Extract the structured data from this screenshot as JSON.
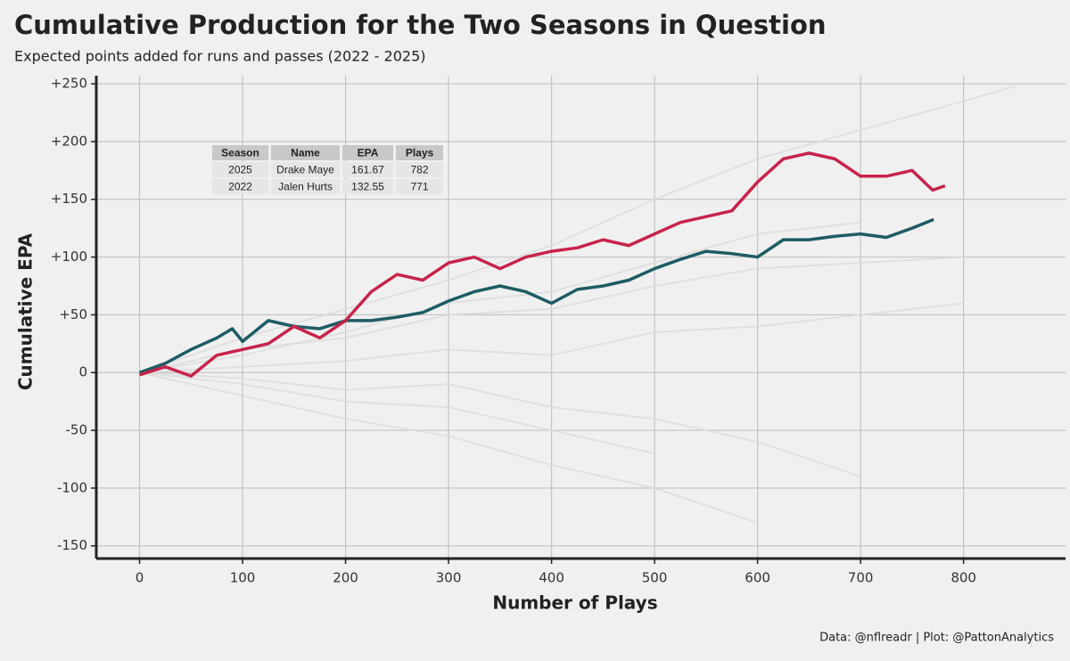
{
  "chart_data": {
    "type": "line",
    "title": "Cumulative Production for the Two Seasons in Question",
    "subtitle": "Expected points added for runs and passes (2022 - 2025)",
    "x_label": "Number of Plays",
    "y_label": "Cumulative EPA",
    "caption": "Data: @nflreadr | Plot: @PattonAnalytics",
    "xlim": [
      -42,
      899
    ],
    "ylim": [
      -161,
      257
    ],
    "xticks": [
      0,
      100,
      200,
      300,
      400,
      500,
      600,
      700,
      800
    ],
    "yticks": [
      {
        "value": 250,
        "label": "+250"
      },
      {
        "value": 200,
        "label": "+200"
      },
      {
        "value": 150,
        "label": "+150"
      },
      {
        "value": 100,
        "label": "+100"
      },
      {
        "value": 50,
        "label": "+50"
      },
      0,
      -50,
      -100,
      -150
    ],
    "grid": true,
    "table": {
      "columns": [
        "Season",
        "Name",
        "EPA",
        "Plays"
      ],
      "rows": [
        [
          2025,
          "Drake Maye",
          161.67,
          782
        ],
        [
          2022,
          "Jalen Hurts",
          132.55,
          771
        ]
      ]
    },
    "series": [
      {
        "color": "#dcdcdc",
        "x": [
          0,
          100,
          200,
          300,
          400,
          500,
          600,
          700,
          800,
          850
        ],
        "values": [
          0,
          30,
          55,
          80,
          110,
          150,
          185,
          210,
          235,
          248
        ]
      },
      {
        "color": "#dcdcdc",
        "x": [
          0,
          100,
          200,
          300,
          400,
          500,
          600,
          700
        ],
        "values": [
          0,
          15,
          35,
          60,
          70,
          95,
          120,
          130
        ]
      },
      {
        "color": "#dcdcdc",
        "x": [
          0,
          100,
          200,
          300,
          400,
          500,
          600,
          700,
          800
        ],
        "values": [
          0,
          5,
          10,
          20,
          15,
          35,
          40,
          50,
          60
        ]
      },
      {
        "color": "#dcdcdc",
        "x": [
          0,
          100,
          200,
          300,
          400,
          500
        ],
        "values": [
          0,
          -10,
          -25,
          -30,
          -50,
          -70
        ]
      },
      {
        "color": "#dcdcdc",
        "x": [
          0,
          100,
          200,
          300,
          400,
          500,
          600
        ],
        "values": [
          0,
          -20,
          -40,
          -55,
          -80,
          -100,
          -130
        ]
      },
      {
        "color": "#dcdcdc",
        "x": [
          0,
          100,
          200,
          300,
          400,
          500,
          600,
          700
        ],
        "values": [
          0,
          -5,
          -15,
          -10,
          -30,
          -40,
          -60,
          -90
        ]
      },
      {
        "color": "#dcdcdc",
        "x": [
          0,
          100,
          200,
          300,
          400,
          500,
          600,
          700,
          800
        ],
        "values": [
          0,
          20,
          30,
          50,
          55,
          75,
          90,
          95,
          100
        ]
      },
      {
        "name": "Jalen Hurts",
        "color": "#1d5c63",
        "x": [
          0,
          25,
          50,
          75,
          90,
          100,
          125,
          150,
          175,
          200,
          225,
          250,
          275,
          300,
          325,
          350,
          375,
          400,
          425,
          450,
          475,
          500,
          525,
          550,
          575,
          600,
          625,
          650,
          675,
          700,
          725,
          750,
          771
        ],
        "values": [
          0,
          8,
          20,
          30,
          38,
          27,
          45,
          40,
          38,
          45,
          45,
          48,
          52,
          62,
          70,
          75,
          70,
          60,
          72,
          75,
          80,
          90,
          98,
          105,
          103,
          100,
          115,
          115,
          118,
          120,
          117,
          125,
          132.55
        ]
      },
      {
        "name": "Drake Maye",
        "color": "#c8234a",
        "x": [
          0,
          25,
          50,
          75,
          100,
          125,
          150,
          175,
          200,
          225,
          250,
          275,
          300,
          325,
          350,
          375,
          400,
          425,
          450,
          475,
          500,
          525,
          550,
          575,
          600,
          625,
          650,
          675,
          700,
          725,
          750,
          770,
          782
        ],
        "values": [
          -2,
          5,
          -3,
          15,
          20,
          25,
          40,
          30,
          45,
          70,
          85,
          80,
          95,
          100,
          90,
          100,
          105,
          108,
          115,
          110,
          120,
          130,
          135,
          140,
          165,
          185,
          190,
          185,
          170,
          170,
          175,
          158,
          161.67
        ]
      }
    ]
  }
}
